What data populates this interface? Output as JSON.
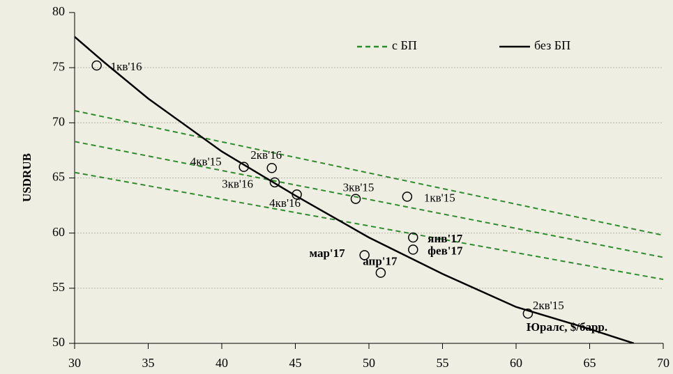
{
  "chart_data": {
    "type": "scatter",
    "y_label": "USDRUB",
    "x_label": "Юралс, $/барр.",
    "xlim": [
      30,
      70
    ],
    "xticks": [
      30,
      35,
      40,
      45,
      50,
      55,
      60,
      65,
      70
    ],
    "ylim": [
      50,
      80
    ],
    "yticks": [
      50,
      55,
      60,
      65,
      70,
      75,
      80
    ],
    "grid": true,
    "legend": "top",
    "points": {
      "labels": [
        "1кв'16",
        "4кв'15",
        "2кв'16",
        "3кв'16",
        "4кв'16",
        "3кв'15",
        "1кв'15",
        "янв'17",
        "фев'17",
        "мар'17",
        "апр'17",
        "2кв'15"
      ],
      "x": [
        31.5,
        41.5,
        43.4,
        43.6,
        45.1,
        49.1,
        52.6,
        53.0,
        53.0,
        49.7,
        50.8,
        60.8
      ],
      "y": [
        75.2,
        66.0,
        65.9,
        64.6,
        63.5,
        63.1,
        63.3,
        59.6,
        58.5,
        58.0,
        56.4,
        52.7
      ]
    },
    "series": [
      {
        "name": "с БП",
        "color": "#2e8b2e",
        "style": "dashed",
        "lines": [
          {
            "x": [
              30,
              70
            ],
            "y": [
              71.1,
              59.8
            ]
          },
          {
            "x": [
              30,
              70
            ],
            "y": [
              68.3,
              57.8
            ]
          },
          {
            "x": [
              30,
              70
            ],
            "y": [
              65.5,
              55.8
            ]
          }
        ]
      },
      {
        "name": "без БП",
        "color": "#000000",
        "style": "solid",
        "x": [
          30,
          32,
          35,
          40,
          45,
          50,
          55,
          60,
          65,
          68
        ],
        "y": [
          77.8,
          75.5,
          72.2,
          67.4,
          63.4,
          59.6,
          56.3,
          53.3,
          51.3,
          50.0
        ]
      }
    ]
  }
}
